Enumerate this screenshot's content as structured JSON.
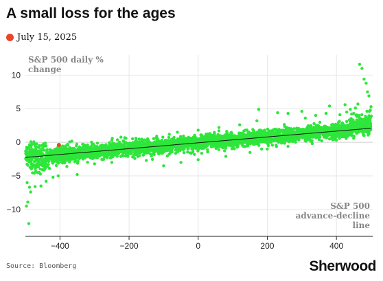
{
  "header": {
    "title": "A small loss for the ages",
    "legend_label": "July 15, 2025"
  },
  "footer": {
    "source": "Source: Bloomberg",
    "brand": "Sherwood"
  },
  "colors": {
    "points": "#2ee63b",
    "highlight": "#e8472b",
    "trend": "#111111",
    "grid": "#e6e6e6"
  },
  "chart_data": {
    "type": "scatter",
    "ylabel_lines": [
      "S&P 500 daily %",
      "change"
    ],
    "xlabel_lines": [
      "S&P 500",
      "advance-decline",
      "line"
    ],
    "xlim": [
      -500,
      505
    ],
    "ylim": [
      -14,
      13
    ],
    "x_ticks": [
      -400,
      -200,
      0,
      200,
      400
    ],
    "y_ticks": [
      -10,
      -5,
      0,
      5,
      10
    ],
    "x_tick_labels": [
      "−400",
      "−200",
      "0",
      "200",
      "400"
    ],
    "y_tick_labels": [
      "−10",
      "−5",
      "0",
      "5",
      "10"
    ],
    "grid": true,
    "trendline": {
      "x": [
        -500,
        500
      ],
      "y": [
        -2.25,
        2.1
      ]
    },
    "highlight_point": {
      "label": "July 15, 2025",
      "x": -403,
      "y": -0.4
    },
    "series": [
      {
        "cloud_note": "thousands of green daily observations along the trend",
        "points": [
          [
            -497,
            -9.5
          ],
          [
            -493,
            -8.9
          ],
          [
            -490,
            -12.1
          ],
          [
            -488,
            -6.7
          ],
          [
            -485,
            -7.4
          ],
          [
            -495,
            -6.0
          ],
          [
            -472,
            -6.6
          ],
          [
            -455,
            -6.5
          ],
          [
            -440,
            -5.8
          ],
          [
            -420,
            -5.2
          ],
          [
            -405,
            -5.0
          ],
          [
            -350,
            -4.8
          ],
          [
            -460,
            -4.5
          ],
          [
            -430,
            -3.9
          ],
          [
            -380,
            -3.6
          ],
          [
            -300,
            -3.2
          ],
          [
            -250,
            -3.0
          ],
          [
            -150,
            -2.7
          ],
          [
            -480,
            -1.5
          ],
          [
            -470,
            -1.3
          ],
          [
            -410,
            -1.1
          ],
          [
            -360,
            -0.9
          ],
          [
            -320,
            -0.4
          ],
          [
            -250,
            0.3
          ],
          [
            -180,
            0.6
          ],
          [
            -120,
            0.9
          ],
          [
            -60,
            1.5
          ],
          [
            0,
            1.8
          ],
          [
            60,
            2.2
          ],
          [
            120,
            2.6
          ],
          [
            170,
            3.2
          ],
          [
            175,
            4.9
          ],
          [
            230,
            4.4
          ],
          [
            260,
            4.3
          ],
          [
            300,
            4.6
          ],
          [
            310,
            3.6
          ],
          [
            340,
            4.0
          ],
          [
            370,
            4.3
          ],
          [
            380,
            5.4
          ],
          [
            410,
            4.1
          ],
          [
            425,
            5.6
          ],
          [
            430,
            4.5
          ],
          [
            440,
            4.9
          ],
          [
            450,
            4.3
          ],
          [
            455,
            5.1
          ],
          [
            462,
            5.7
          ],
          [
            467,
            11.6
          ],
          [
            474,
            11.0
          ],
          [
            480,
            9.4
          ],
          [
            486,
            8.8
          ],
          [
            490,
            7.5
          ],
          [
            494,
            6.9
          ],
          [
            498,
            4.8
          ],
          [
            500,
            5.3
          ],
          [
            495,
            4.6
          ],
          [
            485,
            3.6
          ],
          [
            -100,
            -3.5
          ],
          [
            -50,
            -3.0
          ],
          [
            0,
            -2.6
          ],
          [
            80,
            -2.1
          ],
          [
            150,
            -1.5
          ],
          [
            200,
            -1.0
          ],
          [
            260,
            -0.6
          ],
          [
            330,
            -0.2
          ],
          [
            400,
            0.3
          ],
          [
            450,
            0.6
          ],
          [
            480,
            1.0
          ]
        ]
      }
    ]
  }
}
